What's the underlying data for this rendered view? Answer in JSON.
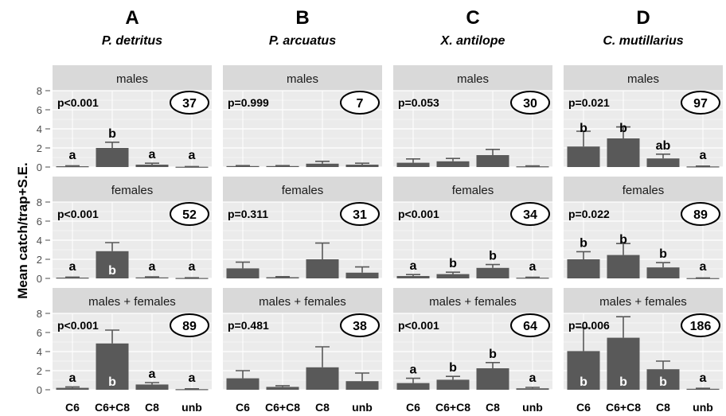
{
  "chart_data": {
    "type": "bar",
    "ylabel": "Mean catch/trap+S.E.",
    "categories": [
      "C6",
      "C6+C8",
      "C8",
      "unb"
    ],
    "ylim": [
      0,
      8
    ],
    "yticks": [
      0,
      2,
      4,
      6,
      8
    ],
    "grid": true,
    "colors": {
      "bar": "#595959",
      "strip": "#d9d9d9",
      "panel": "#ebebeb",
      "grid": "#ffffff",
      "errorbar": "#595959"
    },
    "species": [
      {
        "letter": "A",
        "name": "P. detritus"
      },
      {
        "letter": "B",
        "name": "P. arcuatus"
      },
      {
        "letter": "C",
        "name": "X. antilope"
      },
      {
        "letter": "D",
        "name": "C. mutillarius"
      }
    ],
    "sexes": [
      "males",
      "females",
      "males + females"
    ],
    "panels": [
      [
        {
          "p": "p<0.001",
          "n": "37",
          "values": [
            0.08,
            2.0,
            0.25,
            0.03
          ],
          "se": [
            0.05,
            0.6,
            0.15,
            0.02
          ],
          "letters": [
            "a",
            "b",
            "a",
            "a"
          ],
          "letters_inside": [
            false,
            false,
            false,
            false
          ]
        },
        {
          "p": "p<0.001",
          "n": "52",
          "values": [
            0.08,
            2.85,
            0.1,
            0.04
          ],
          "se": [
            0.05,
            0.9,
            0.06,
            0.03
          ],
          "letters": [
            "a",
            "b",
            "a",
            "a"
          ],
          "letters_inside": [
            false,
            true,
            false,
            false
          ]
        },
        {
          "p": "p<0.001",
          "n": "89",
          "values": [
            0.2,
            4.85,
            0.55,
            0.06
          ],
          "se": [
            0.1,
            1.4,
            0.2,
            0.04
          ],
          "letters": [
            "a",
            "b",
            "a",
            "a"
          ],
          "letters_inside": [
            false,
            true,
            false,
            false
          ]
        }
      ],
      [
        {
          "p": "p=0.999",
          "n": "7",
          "values": [
            0.1,
            0.1,
            0.35,
            0.25
          ],
          "se": [
            0.05,
            0.05,
            0.25,
            0.15
          ],
          "letters": [
            "",
            "",
            "",
            ""
          ],
          "letters_inside": [
            false,
            false,
            false,
            false
          ]
        },
        {
          "p": "p=0.311",
          "n": "31",
          "values": [
            1.05,
            0.12,
            2.0,
            0.6
          ],
          "se": [
            0.65,
            0.06,
            1.7,
            0.6
          ],
          "letters": [
            "",
            "",
            "",
            ""
          ],
          "letters_inside": [
            false,
            false,
            false,
            false
          ]
        },
        {
          "p": "p=0.481",
          "n": "38",
          "values": [
            1.2,
            0.3,
            2.35,
            0.9
          ],
          "se": [
            0.8,
            0.12,
            2.15,
            0.85
          ],
          "letters": [
            "",
            "",
            "",
            ""
          ],
          "letters_inside": [
            false,
            false,
            false,
            false
          ]
        }
      ],
      [
        {
          "p": "p=0.053",
          "n": "30",
          "values": [
            0.45,
            0.6,
            1.25,
            0.07
          ],
          "se": [
            0.4,
            0.3,
            0.6,
            0.05
          ],
          "letters": [
            "",
            "",
            "",
            ""
          ],
          "letters_inside": [
            false,
            false,
            false,
            false
          ]
        },
        {
          "p": "p<0.001",
          "n": "34",
          "values": [
            0.25,
            0.45,
            1.1,
            0.07
          ],
          "se": [
            0.15,
            0.2,
            0.35,
            0.05
          ],
          "letters": [
            "a",
            "b",
            "b",
            "a"
          ],
          "letters_inside": [
            false,
            false,
            false,
            false
          ]
        },
        {
          "p": "p<0.001",
          "n": "64",
          "values": [
            0.7,
            1.05,
            2.25,
            0.15
          ],
          "se": [
            0.5,
            0.35,
            0.6,
            0.1
          ],
          "letters": [
            "a",
            "b",
            "b",
            "a"
          ],
          "letters_inside": [
            false,
            false,
            false,
            false
          ]
        }
      ],
      [
        {
          "p": "p=0.021",
          "n": "97",
          "values": [
            2.15,
            3.0,
            0.9,
            0.06
          ],
          "se": [
            1.6,
            1.2,
            0.45,
            0.04
          ],
          "letters": [
            "b",
            "b",
            "ab",
            "a"
          ],
          "letters_inside": [
            false,
            false,
            false,
            false
          ]
        },
        {
          "p": "p=0.022",
          "n": "89",
          "values": [
            2.0,
            2.45,
            1.15,
            0.03
          ],
          "se": [
            0.8,
            1.2,
            0.5,
            0.02
          ],
          "letters": [
            "b",
            "b",
            "b",
            "a"
          ],
          "letters_inside": [
            false,
            false,
            false,
            false
          ]
        },
        {
          "p": "p=0.006",
          "n": "186",
          "values": [
            4.05,
            5.45,
            2.15,
            0.1
          ],
          "se": [
            2.45,
            2.2,
            0.85,
            0.05
          ],
          "letters": [
            "b",
            "b",
            "b",
            "a"
          ],
          "letters_inside": [
            true,
            true,
            true,
            false
          ]
        }
      ]
    ]
  }
}
